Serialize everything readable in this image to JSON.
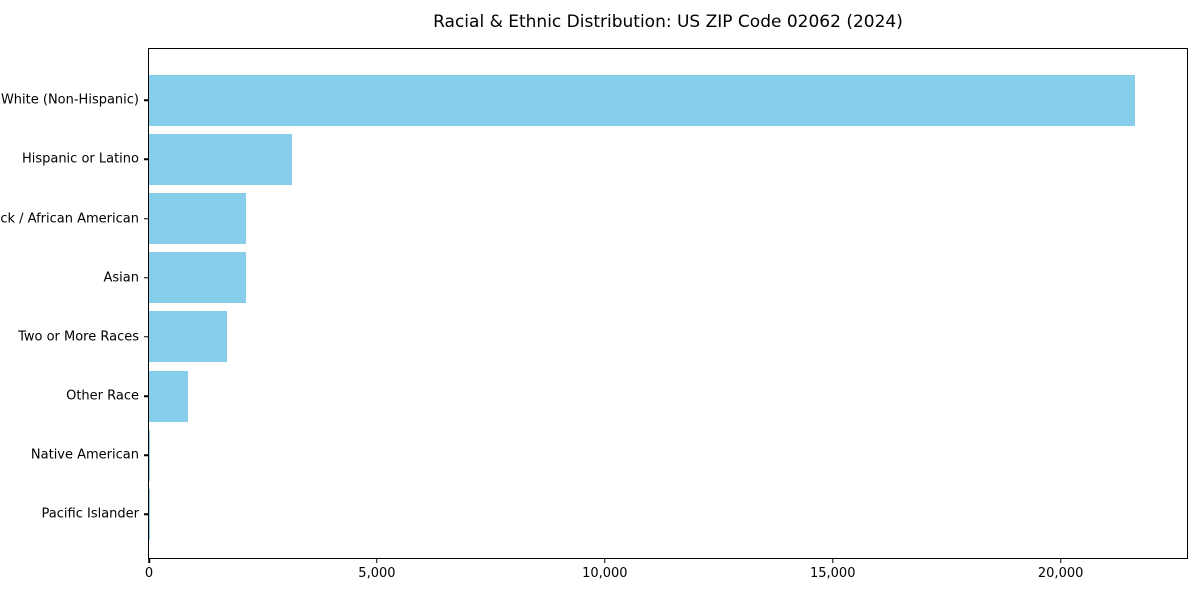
{
  "chart_data": {
    "type": "bar",
    "orientation": "horizontal",
    "title": "Racial & Ethnic Distribution: US ZIP Code 02062 (2024)",
    "categories": [
      "White (Non-Hispanic)",
      "Hispanic or Latino",
      "Black / African American",
      "Asian",
      "Two or More Races",
      "Other Race",
      "Native American",
      "Pacific Islander"
    ],
    "values": [
      21630,
      3140,
      2130,
      2120,
      1715,
      860,
      20,
      10
    ],
    "x_tick_values": [
      0,
      5000,
      10000,
      15000,
      20000
    ],
    "x_tick_labels": [
      "0",
      "5,000",
      "10,000",
      "15,000",
      "20,000"
    ],
    "xlim": [
      0,
      22750
    ],
    "xlabel": "",
    "ylabel": "",
    "grid": false,
    "legend": "none",
    "bar_color": "#87CEEB",
    "axis_color": "#000000",
    "text_color": "#000000",
    "background_color": "#ffffff"
  }
}
